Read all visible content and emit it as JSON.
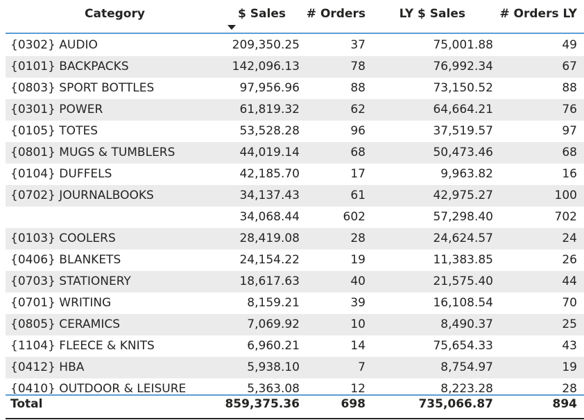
{
  "table": {
    "columns": {
      "category": "Category",
      "sales": "$ Sales",
      "orders": "# Orders",
      "ly_sales": "LY $ Sales",
      "orders_ly": "# Orders LY"
    },
    "sort_icon": "sort-descending-icon",
    "rows": [
      {
        "category": "{0302} AUDIO",
        "sales": "209,350.25",
        "orders": "37",
        "ly_sales": "75,001.88",
        "orders_ly": "49"
      },
      {
        "category": "{0101} BACKPACKS",
        "sales": "142,096.13",
        "orders": "78",
        "ly_sales": "76,992.34",
        "orders_ly": "67"
      },
      {
        "category": "{0803} SPORT BOTTLES",
        "sales": "97,956.96",
        "orders": "88",
        "ly_sales": "73,150.52",
        "orders_ly": "88"
      },
      {
        "category": "{0301} POWER",
        "sales": "61,819.32",
        "orders": "62",
        "ly_sales": "64,664.21",
        "orders_ly": "76"
      },
      {
        "category": "{0105} TOTES",
        "sales": "53,528.28",
        "orders": "96",
        "ly_sales": "37,519.57",
        "orders_ly": "97"
      },
      {
        "category": "{0801} MUGS & TUMBLERS",
        "sales": "44,019.14",
        "orders": "68",
        "ly_sales": "50,473.46",
        "orders_ly": "68"
      },
      {
        "category": "{0104} DUFFELS",
        "sales": "42,185.70",
        "orders": "17",
        "ly_sales": "9,963.82",
        "orders_ly": "16"
      },
      {
        "category": "{0702} JOURNALBOOKS",
        "sales": "34,137.43",
        "orders": "61",
        "ly_sales": "42,975.27",
        "orders_ly": "100"
      },
      {
        "category": "",
        "sales": "34,068.44",
        "orders": "602",
        "ly_sales": "57,298.40",
        "orders_ly": "702"
      },
      {
        "category": "{0103} COOLERS",
        "sales": "28,419.08",
        "orders": "28",
        "ly_sales": "24,624.57",
        "orders_ly": "24"
      },
      {
        "category": "{0406} BLANKETS",
        "sales": "24,154.22",
        "orders": "19",
        "ly_sales": "11,383.85",
        "orders_ly": "26"
      },
      {
        "category": "{0703} STATIONERY",
        "sales": "18,617.63",
        "orders": "40",
        "ly_sales": "21,575.40",
        "orders_ly": "44"
      },
      {
        "category": "{0701} WRITING",
        "sales": "8,159.21",
        "orders": "39",
        "ly_sales": "16,108.54",
        "orders_ly": "70"
      },
      {
        "category": "{0805} CERAMICS",
        "sales": "7,069.92",
        "orders": "10",
        "ly_sales": "8,490.37",
        "orders_ly": "25"
      },
      {
        "category": "{1104} FLEECE & KNITS",
        "sales": "6,960.21",
        "orders": "14",
        "ly_sales": "75,654.33",
        "orders_ly": "43"
      },
      {
        "category": "{0412} HBA",
        "sales": "5,938.10",
        "orders": "7",
        "ly_sales": "8,754.97",
        "orders_ly": "19"
      },
      {
        "category": "{0410} OUTDOOR & LEISURE",
        "sales": "5,363.08",
        "orders": "12",
        "ly_sales": "8,223.28",
        "orders_ly": "28"
      }
    ],
    "total": {
      "label": "Total",
      "sales": "859,375.36",
      "orders": "698",
      "ly_sales": "735,066.87",
      "orders_ly": "894"
    }
  }
}
